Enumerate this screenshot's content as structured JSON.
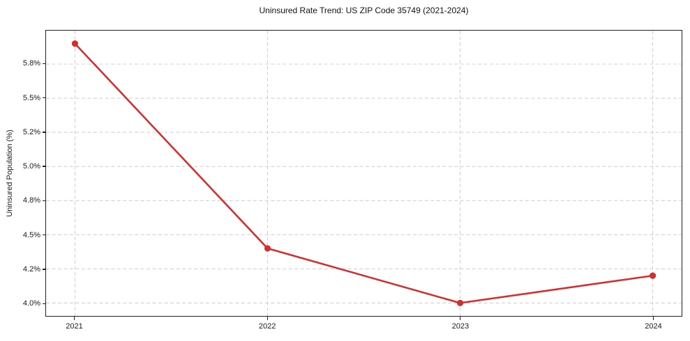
{
  "figure": {
    "title": "Uninsured Rate Trend: US ZIP Code 35749 (2021-2024)"
  },
  "chart_data": {
    "type": "line",
    "title": "Uninsured Rate Trend: US ZIP Code 35749 (2021-2024)",
    "xlabel": "",
    "ylabel": "Uninsured Population (%)",
    "x": [
      2021,
      2022,
      2023,
      2024
    ],
    "values": [
      5.9,
      4.4,
      4.0,
      4.2
    ],
    "series_name": "uninsured-rate",
    "xlim": [
      2020.85,
      2024.15
    ],
    "ylim": [
      3.905,
      5.995
    ],
    "xticks": [
      {
        "v": 2021,
        "label": "2021"
      },
      {
        "v": 2022,
        "label": "2022"
      },
      {
        "v": 2023,
        "label": "2023"
      },
      {
        "v": 2024,
        "label": "2024"
      }
    ],
    "yticks": [
      {
        "v": 4.0,
        "label": "4.0%"
      },
      {
        "v": 4.25,
        "label": "4.2%"
      },
      {
        "v": 4.5,
        "label": "4.5%"
      },
      {
        "v": 4.75,
        "label": "4.8%"
      },
      {
        "v": 5.0,
        "label": "5.0%"
      },
      {
        "v": 5.25,
        "label": "5.2%"
      },
      {
        "v": 5.5,
        "label": "5.5%"
      },
      {
        "v": 5.75,
        "label": "5.8%"
      }
    ],
    "grid": true,
    "legend_position": "none",
    "colors": {
      "line": "#d32f2f",
      "marker": "#d32f2f",
      "grid": "#cccccc",
      "spine": "#1f1f1f",
      "background": "#ffffff"
    },
    "line_width": 2.6,
    "marker_radius": 4.6
  }
}
